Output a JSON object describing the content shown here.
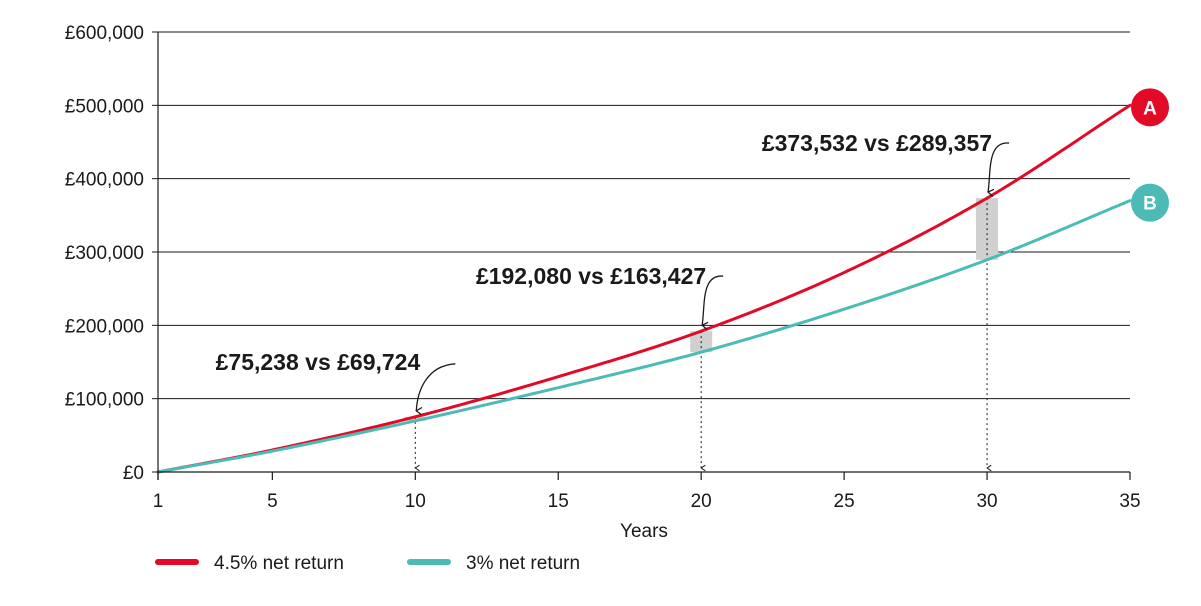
{
  "chart_data": {
    "type": "line",
    "xlabel": "Years",
    "ylabel": "",
    "xlim": [
      1,
      35
    ],
    "ylim": [
      0,
      600000
    ],
    "x_ticks": [
      1,
      5,
      10,
      15,
      20,
      25,
      30,
      35
    ],
    "y_ticks": [
      0,
      100000,
      200000,
      300000,
      400000,
      500000,
      600000
    ],
    "y_tick_labels": [
      "£0",
      "£100,000",
      "£200,000",
      "£300,000",
      "£400,000",
      "£500,000",
      "£600,000"
    ],
    "grid": "horizontal",
    "legend_position": "bottom-left",
    "series": [
      {
        "name": "4.5% net return",
        "end_label": "A",
        "color": "#e30a27",
        "x": [
          1,
          5,
          10,
          15,
          20,
          25,
          30,
          35
        ],
        "y": [
          0,
          30000,
          75238,
          130000,
          192080,
          272000,
          373532,
          500000
        ]
      },
      {
        "name": "3% net return",
        "end_label": "B",
        "color": "#4dbbb5",
        "x": [
          1,
          5,
          10,
          15,
          20,
          25,
          30,
          35
        ],
        "y": [
          0,
          28500,
          69724,
          115000,
          163427,
          222000,
          289357,
          370000
        ]
      }
    ],
    "annotations": [
      {
        "x": 10,
        "high": 75238,
        "low": 69724,
        "text": "£75,238 vs £69,724"
      },
      {
        "x": 20,
        "high": 192080,
        "low": 163427,
        "text": "£192,080 vs £163,427"
      },
      {
        "x": 30,
        "high": 373532,
        "low": 289357,
        "text": "£373,532 vs £289,357"
      }
    ]
  }
}
